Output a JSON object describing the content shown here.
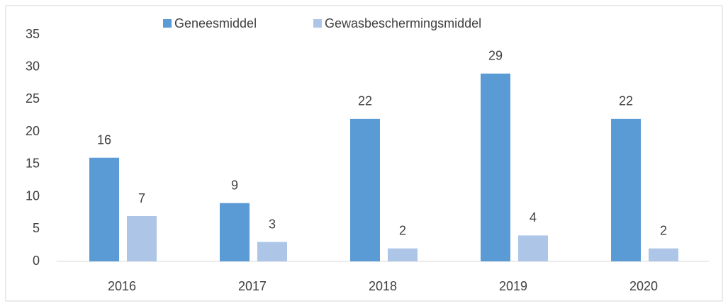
{
  "chart_data": {
    "type": "bar",
    "categories": [
      "2016",
      "2017",
      "2018",
      "2019",
      "2020"
    ],
    "series": [
      {
        "name": "Geneesmiddel",
        "color": "#5b9bd5",
        "values": [
          16,
          9,
          22,
          29,
          22
        ]
      },
      {
        "name": "Gewasbeschermingsmiddel",
        "color": "#adc6e8",
        "values": [
          7,
          3,
          2,
          4,
          2
        ]
      }
    ],
    "ylim": [
      0,
      35
    ],
    "yticks": [
      0,
      5,
      10,
      15,
      20,
      25,
      30,
      35
    ],
    "grid": false,
    "legend": "top"
  }
}
